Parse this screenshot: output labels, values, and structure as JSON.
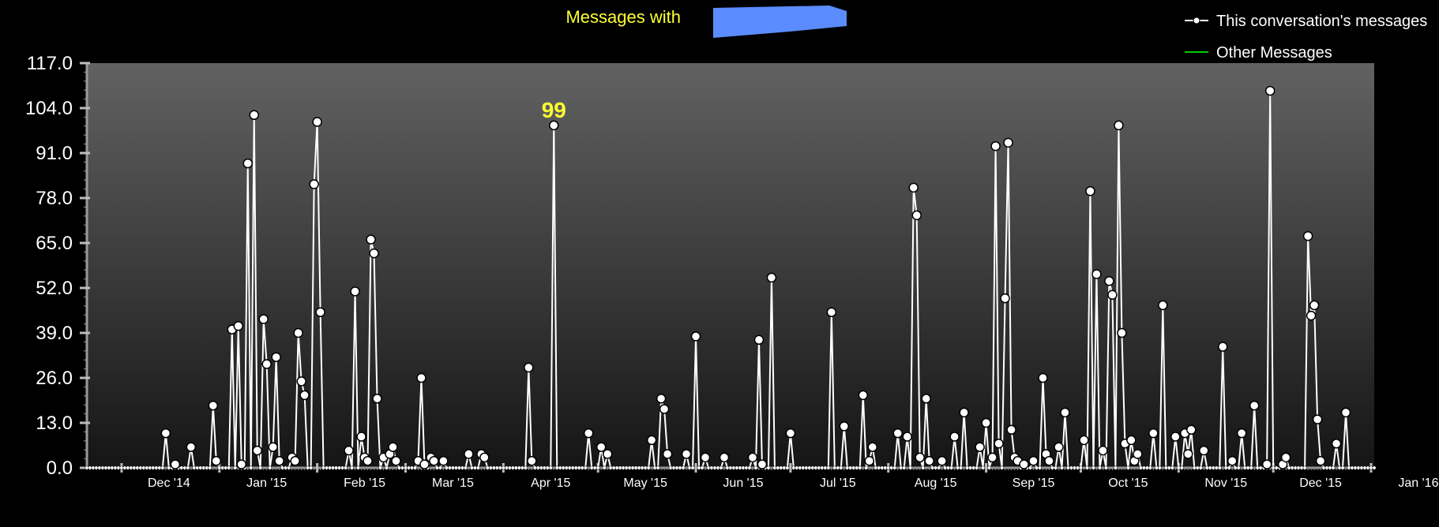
{
  "chart_data": {
    "type": "line",
    "title": "Messages with",
    "xlabel": "",
    "ylabel": "",
    "ylim": [
      0,
      117
    ],
    "yticks": [
      "0.0",
      "13.0",
      "26.0",
      "39.0",
      "52.0",
      "65.0",
      "78.0",
      "91.0",
      "104.0",
      "117.0"
    ],
    "xlim": [
      "2014-11-20",
      "2016-01-02"
    ],
    "xticks": [
      {
        "label": "Dec '14",
        "date": "2014-12-01"
      },
      {
        "label": "Jan '15",
        "date": "2015-01-01"
      },
      {
        "label": "Feb '15",
        "date": "2015-02-01"
      },
      {
        "label": "Mar '15",
        "date": "2015-03-01"
      },
      {
        "label": "Apr '15",
        "date": "2015-04-01"
      },
      {
        "label": "May '15",
        "date": "2015-05-01"
      },
      {
        "label": "Jun '15",
        "date": "2015-06-01"
      },
      {
        "label": "Jul '15",
        "date": "2015-07-01"
      },
      {
        "label": "Aug '15",
        "date": "2015-08-01"
      },
      {
        "label": "Sep '15",
        "date": "2015-09-01"
      },
      {
        "label": "Oct '15",
        "date": "2015-10-01"
      },
      {
        "label": "Nov '15",
        "date": "2015-11-01"
      },
      {
        "label": "Dec '15",
        "date": "2015-12-01"
      },
      {
        "label": "Jan '16",
        "date": "2016-01-01"
      }
    ],
    "annotation": {
      "text": "99",
      "date": "2015-04-17",
      "value": 99
    },
    "grid": false,
    "legend_position": "top-right",
    "series": [
      {
        "name": "This conversation's messages",
        "color": "#ffffff",
        "points": [
          [
            "2014-12-15",
            10
          ],
          [
            "2014-12-18",
            1
          ],
          [
            "2014-12-23",
            6
          ],
          [
            "2014-12-30",
            18
          ],
          [
            "2014-12-31",
            2
          ],
          [
            "2015-01-05",
            40
          ],
          [
            "2015-01-07",
            41
          ],
          [
            "2015-01-08",
            1
          ],
          [
            "2015-01-10",
            88
          ],
          [
            "2015-01-12",
            102
          ],
          [
            "2015-01-13",
            5
          ],
          [
            "2015-01-15",
            43
          ],
          [
            "2015-01-16",
            30
          ],
          [
            "2015-01-18",
            6
          ],
          [
            "2015-01-19",
            32
          ],
          [
            "2015-01-20",
            2
          ],
          [
            "2015-01-24",
            3
          ],
          [
            "2015-01-25",
            2
          ],
          [
            "2015-01-26",
            39
          ],
          [
            "2015-01-27",
            25
          ],
          [
            "2015-01-28",
            21
          ],
          [
            "2015-01-31",
            82
          ],
          [
            "2015-02-01",
            100
          ],
          [
            "2015-02-02",
            45
          ],
          [
            "2015-02-11",
            5
          ],
          [
            "2015-02-13",
            51
          ],
          [
            "2015-02-15",
            9
          ],
          [
            "2015-02-16",
            3
          ],
          [
            "2015-02-17",
            2
          ],
          [
            "2015-02-18",
            66
          ],
          [
            "2015-02-19",
            62
          ],
          [
            "2015-02-20",
            20
          ],
          [
            "2015-02-22",
            3
          ],
          [
            "2015-02-24",
            4
          ],
          [
            "2015-02-25",
            6
          ],
          [
            "2015-02-26",
            2
          ],
          [
            "2015-03-05",
            2
          ],
          [
            "2015-03-06",
            26
          ],
          [
            "2015-03-07",
            1
          ],
          [
            "2015-03-09",
            3
          ],
          [
            "2015-03-10",
            2
          ],
          [
            "2015-03-13",
            2
          ],
          [
            "2015-03-21",
            4
          ],
          [
            "2015-03-25",
            4
          ],
          [
            "2015-03-26",
            3
          ],
          [
            "2015-04-09",
            29
          ],
          [
            "2015-04-10",
            2
          ],
          [
            "2015-04-17",
            99
          ],
          [
            "2015-04-28",
            10
          ],
          [
            "2015-05-02",
            6
          ],
          [
            "2015-05-04",
            4
          ],
          [
            "2015-05-18",
            8
          ],
          [
            "2015-05-21",
            20
          ],
          [
            "2015-05-22",
            17
          ],
          [
            "2015-05-23",
            4
          ],
          [
            "2015-05-29",
            4
          ],
          [
            "2015-06-01",
            38
          ],
          [
            "2015-06-04",
            3
          ],
          [
            "2015-06-10",
            3
          ],
          [
            "2015-06-19",
            3
          ],
          [
            "2015-06-21",
            37
          ],
          [
            "2015-06-22",
            1
          ],
          [
            "2015-06-25",
            55
          ],
          [
            "2015-07-01",
            10
          ],
          [
            "2015-07-14",
            45
          ],
          [
            "2015-07-18",
            12
          ],
          [
            "2015-07-24",
            21
          ],
          [
            "2015-07-26",
            2
          ],
          [
            "2015-07-27",
            6
          ],
          [
            "2015-08-04",
            10
          ],
          [
            "2015-08-07",
            9
          ],
          [
            "2015-08-09",
            81
          ],
          [
            "2015-08-10",
            73
          ],
          [
            "2015-08-11",
            3
          ],
          [
            "2015-08-13",
            20
          ],
          [
            "2015-08-14",
            2
          ],
          [
            "2015-08-18",
            2
          ],
          [
            "2015-08-22",
            9
          ],
          [
            "2015-08-25",
            16
          ],
          [
            "2015-08-30",
            6
          ],
          [
            "2015-09-01",
            13
          ],
          [
            "2015-09-03",
            3
          ],
          [
            "2015-09-04",
            93
          ],
          [
            "2015-09-05",
            7
          ],
          [
            "2015-09-07",
            49
          ],
          [
            "2015-09-08",
            94
          ],
          [
            "2015-09-09",
            11
          ],
          [
            "2015-09-10",
            3
          ],
          [
            "2015-09-11",
            2
          ],
          [
            "2015-09-13",
            1
          ],
          [
            "2015-09-16",
            2
          ],
          [
            "2015-09-19",
            26
          ],
          [
            "2015-09-20",
            4
          ],
          [
            "2015-09-21",
            2
          ],
          [
            "2015-09-24",
            6
          ],
          [
            "2015-09-26",
            16
          ],
          [
            "2015-10-02",
            8
          ],
          [
            "2015-10-04",
            80
          ],
          [
            "2015-10-06",
            56
          ],
          [
            "2015-10-08",
            5
          ],
          [
            "2015-10-10",
            54
          ],
          [
            "2015-10-11",
            50
          ],
          [
            "2015-10-13",
            99
          ],
          [
            "2015-10-14",
            39
          ],
          [
            "2015-10-15",
            7
          ],
          [
            "2015-10-17",
            8
          ],
          [
            "2015-10-18",
            2
          ],
          [
            "2015-10-19",
            4
          ],
          [
            "2015-10-24",
            10
          ],
          [
            "2015-10-27",
            47
          ],
          [
            "2015-10-31",
            9
          ],
          [
            "2015-11-03",
            10
          ],
          [
            "2015-11-04",
            4
          ],
          [
            "2015-11-05",
            11
          ],
          [
            "2015-11-09",
            5
          ],
          [
            "2015-11-15",
            35
          ],
          [
            "2015-11-18",
            2
          ],
          [
            "2015-11-21",
            10
          ],
          [
            "2015-11-25",
            18
          ],
          [
            "2015-11-29",
            1
          ],
          [
            "2015-11-30",
            109
          ],
          [
            "2015-12-04",
            1
          ],
          [
            "2015-12-05",
            3
          ],
          [
            "2015-12-12",
            67
          ],
          [
            "2015-12-13",
            44
          ],
          [
            "2015-12-14",
            47
          ],
          [
            "2015-12-15",
            14
          ],
          [
            "2015-12-16",
            2
          ],
          [
            "2015-12-21",
            7
          ],
          [
            "2015-12-24",
            16
          ]
        ]
      },
      {
        "name": "Other Messages",
        "color": "#00cc00",
        "points": []
      }
    ]
  }
}
